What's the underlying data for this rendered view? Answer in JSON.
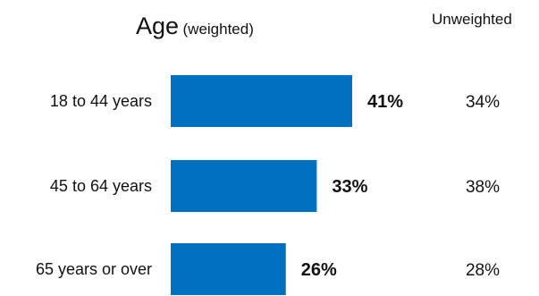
{
  "chart_data": {
    "type": "bar",
    "orientation": "horizontal",
    "title": "Age",
    "subtitle": "(weighted)",
    "categories": [
      "18 to 44 years",
      "45 to 64 years",
      "65 years or over"
    ],
    "values": [
      41,
      33,
      26
    ],
    "value_labels": [
      "41%",
      "33%",
      "26%"
    ],
    "unweighted_header": "Unweighted",
    "unweighted_values": [
      34,
      38,
      28
    ],
    "unweighted_labels": [
      "34%",
      "38%",
      "28%"
    ],
    "grid": false,
    "legend": "none",
    "bar_color": "#0070c0"
  }
}
